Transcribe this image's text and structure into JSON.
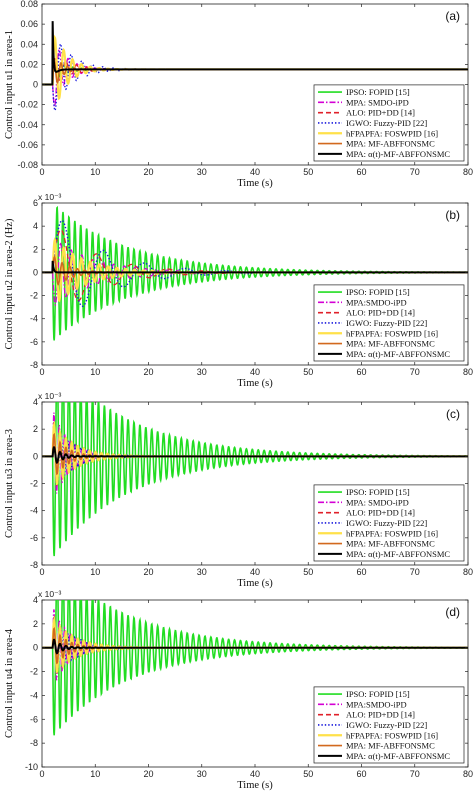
{
  "chart_data": [
    {
      "type": "line",
      "panel_label": "(a)",
      "ylabel": "Control input u1 in area-1",
      "xlabel": "Time (s)",
      "y_multiplier": "",
      "xlim": [
        0,
        80
      ],
      "ylim": [
        -0.08,
        0.08
      ],
      "xticks": [
        "0",
        "10",
        "20",
        "30",
        "40",
        "50",
        "60",
        "70",
        "80"
      ],
      "yticks": [
        "-0.08",
        "-0.06",
        "-0.04",
        "-0.02",
        "0",
        "0.02",
        "0.04",
        "0.06",
        "0.08"
      ],
      "legend_position": "bottom-right",
      "series": [
        {
          "name": "IPSO: FOPID [15]",
          "color": "#22dd22",
          "dash": "solid",
          "width": 1.6,
          "final": 0.015,
          "t0": 2.0,
          "amp": 0.01,
          "tau": 2.5,
          "freq": 0.6,
          "spike": 0.01
        },
        {
          "name": "MPA: SMDO-iPD",
          "color": "#d400d4",
          "dash": "dashdot",
          "width": 1.3,
          "final": 0.015,
          "t0": 2.0,
          "amp": -0.035,
          "tau": 2.5,
          "freq": 0.6,
          "spike": 0.0
        },
        {
          "name": "ALO: PID+DD [14]",
          "color": "#e0202a",
          "dash": "dash",
          "width": 1.3,
          "final": 0.015,
          "t0": 2.0,
          "amp": 0.02,
          "tau": 3.0,
          "freq": 0.5,
          "spike": 0.0
        },
        {
          "name": "IGWO: Fuzzy-PID [22]",
          "color": "#1a1adc",
          "dash": "dot",
          "width": 1.4,
          "final": 0.015,
          "t0": 2.0,
          "amp": -0.04,
          "tau": 3.5,
          "freq": 0.5,
          "spike": 0.0
        },
        {
          "name": "hFPAPFA: FOSWPID [16]",
          "color": "#ffe14a",
          "dash": "solid",
          "width": 2.2,
          "final": 0.015,
          "t0": 2.0,
          "amp": 0.045,
          "tau": 2.5,
          "freq": 0.6,
          "spike": 0.0
        },
        {
          "name": "MPA: MF-ABFFONSMC",
          "color": "#d2691e",
          "dash": "solid",
          "width": 1.6,
          "final": 0.015,
          "t0": 2.0,
          "amp": 0.02,
          "tau": 1.5,
          "freq": 0.8,
          "spike": 0.0
        },
        {
          "name": "MPA: α(t)-MF-ABFFONSMC",
          "color": "#000000",
          "dash": "solid",
          "width": 2.0,
          "final": 0.015,
          "t0": 2.0,
          "amp": 0.0,
          "tau": 1.0,
          "freq": 0.8,
          "spike": 0.063
        }
      ]
    },
    {
      "type": "line",
      "panel_label": "(b)",
      "ylabel": "Control input u2 in area-2 (Hz)",
      "xlabel": "Time (s)",
      "y_multiplier": "x 10⁻³",
      "xlim": [
        0,
        80
      ],
      "ylim": [
        -8,
        6
      ],
      "xticks": [
        "0",
        "10",
        "20",
        "30",
        "40",
        "50",
        "60",
        "70",
        "80"
      ],
      "yticks": [
        "-8",
        "-6",
        "-4",
        "-2",
        "0",
        "2",
        "4",
        "6"
      ],
      "legend_position": "bottom-right",
      "series": [
        {
          "name": "IPSO: FOPID [15]",
          "color": "#22dd22",
          "dash": "solid",
          "width": 1.6,
          "final": 0,
          "t0": 2.0,
          "amp": -6.0,
          "tau": 14,
          "freq": 0.9,
          "spike": 0.0
        },
        {
          "name": "MPA:SMDO-iPD",
          "color": "#d400d4",
          "dash": "dashdot",
          "width": 1.3,
          "final": 0,
          "t0": 2.0,
          "amp": -3.0,
          "tau": 8,
          "freq": 0.5,
          "spike": 0.0
        },
        {
          "name": "ALO: PID+DD [14]",
          "color": "#e0202a",
          "dash": "dash",
          "width": 1.3,
          "final": 0,
          "t0": 2.0,
          "amp": 4.5,
          "tau": 8,
          "freq": 0.15,
          "spike": 0.0
        },
        {
          "name": "IGWO: Fuzzy-PID [22]",
          "color": "#1a1adc",
          "dash": "dot",
          "width": 1.4,
          "final": 0,
          "t0": 2.0,
          "amp": 5.5,
          "tau": 9,
          "freq": 0.13,
          "spike": 0.0
        },
        {
          "name": "hFPAPFA: FOSWPID [16]",
          "color": "#ffe14a",
          "dash": "solid",
          "width": 2.2,
          "final": 0,
          "t0": 2.0,
          "amp": 3.0,
          "tau": 6,
          "freq": 0.6,
          "spike": 0.0
        },
        {
          "name": "MPA: MF-ABFFONSMC",
          "color": "#d2691e",
          "dash": "solid",
          "width": 1.6,
          "final": 0,
          "t0": 2.0,
          "amp": 1.5,
          "tau": 3,
          "freq": 0.7,
          "spike": 0.0
        },
        {
          "name": "MPA: α(t)-MF-ABFFONSMC",
          "color": "#000000",
          "dash": "solid",
          "width": 2.0,
          "final": 0,
          "t0": 2.0,
          "amp": 0.0,
          "tau": 1,
          "freq": 0.8,
          "spike": 1.0
        }
      ]
    },
    {
      "type": "line",
      "panel_label": "(c)",
      "ylabel": "Control input u3 in area-3",
      "xlabel": "Time (s)",
      "y_multiplier": "x 10⁻³",
      "xlim": [
        0,
        80
      ],
      "ylim": [
        -8,
        4
      ],
      "xticks": [
        "0",
        "10",
        "20",
        "30",
        "40",
        "50",
        "60",
        "70",
        "80"
      ],
      "yticks": [
        "-8",
        "-6",
        "-4",
        "-2",
        "0",
        "2",
        "4"
      ],
      "legend_position": "bottom-right",
      "series": [
        {
          "name": "IPSO: FOPID [15]",
          "color": "#22dd22",
          "dash": "solid",
          "width": 1.6,
          "final": 0,
          "t0": 2.0,
          "amp": -7.5,
          "tau": 14,
          "freq": 0.9,
          "spike": 0.0
        },
        {
          "name": "MPA: SMDO-iPD",
          "color": "#d400d4",
          "dash": "dashdot",
          "width": 1.3,
          "final": 0,
          "t0": 2.0,
          "amp": 3.5,
          "tau": 3,
          "freq": 1.0,
          "spike": 0.0
        },
        {
          "name": "ALO: PID+DD [14]",
          "color": "#e0202a",
          "dash": "dash",
          "width": 1.3,
          "final": 0,
          "t0": 2.0,
          "amp": 2.8,
          "tau": 3,
          "freq": 0.9,
          "spike": 0.0
        },
        {
          "name": "IGWO: Fuzzy-PID [22]",
          "color": "#1a1adc",
          "dash": "dot",
          "width": 1.4,
          "final": 0,
          "t0": 2.0,
          "amp": 2.5,
          "tau": 4,
          "freq": 0.8,
          "spike": 0.0
        },
        {
          "name": "hFPAPFA: FOSWPID [16]",
          "color": "#ffe14a",
          "dash": "solid",
          "width": 2.2,
          "final": 0,
          "t0": 2.0,
          "amp": 2.5,
          "tau": 4,
          "freq": 0.9,
          "spike": 0.0
        },
        {
          "name": "MPA: MF-ABFFONSMC",
          "color": "#d2691e",
          "dash": "solid",
          "width": 1.6,
          "final": 0,
          "t0": 2.0,
          "amp": 1.8,
          "tau": 2.5,
          "freq": 0.9,
          "spike": 0.0
        },
        {
          "name": "MPA: α(t)-MF-ABFFONSMC",
          "color": "#000000",
          "dash": "solid",
          "width": 2.0,
          "final": 0,
          "t0": 2.0,
          "amp": 0.8,
          "tau": 1.5,
          "freq": 0.9,
          "spike": 0.0
        }
      ]
    },
    {
      "type": "line",
      "panel_label": "(d)",
      "ylabel": "Control input u4 in area-4",
      "xlabel": "Time (s)",
      "y_multiplier": "x 10⁻³",
      "xlim": [
        0,
        80
      ],
      "ylim": [
        -10,
        4
      ],
      "xticks": [
        "0",
        "10",
        "20",
        "30",
        "40",
        "50",
        "60",
        "70",
        "80"
      ],
      "yticks": [
        "-10",
        "-8",
        "-6",
        "-4",
        "-2",
        "0",
        "2",
        "4"
      ],
      "legend_position": "bottom-right",
      "series": [
        {
          "name": "IPSO: FOPID [15]",
          "color": "#22dd22",
          "dash": "solid",
          "width": 1.6,
          "final": 0,
          "t0": 2.0,
          "amp": -7.5,
          "tau": 14,
          "freq": 0.9,
          "spike": 0.0
        },
        {
          "name": "MPA:SMDO-iPD",
          "color": "#d400d4",
          "dash": "dashdot",
          "width": 1.3,
          "final": 0,
          "t0": 2.0,
          "amp": 3.5,
          "tau": 3,
          "freq": 1.0,
          "spike": 0.0
        },
        {
          "name": "ALO: PID+DD [14]",
          "color": "#e0202a",
          "dash": "dash",
          "width": 1.3,
          "final": 0,
          "t0": 2.0,
          "amp": 2.8,
          "tau": 3,
          "freq": 0.9,
          "spike": 0.0
        },
        {
          "name": "IGWO: Fuzzy-PID [22]",
          "color": "#1a1adc",
          "dash": "dot",
          "width": 1.4,
          "final": 0,
          "t0": 2.0,
          "amp": 2.5,
          "tau": 4,
          "freq": 0.8,
          "spike": 0.0
        },
        {
          "name": "hFPAPFA: FOSWPID [16]",
          "color": "#ffe14a",
          "dash": "solid",
          "width": 2.2,
          "final": 0,
          "t0": 2.0,
          "amp": 2.5,
          "tau": 4,
          "freq": 0.9,
          "spike": 0.0
        },
        {
          "name": "MPA: MF-ABFFONSMC",
          "color": "#d2691e",
          "dash": "solid",
          "width": 1.6,
          "final": 0,
          "t0": 2.0,
          "amp": 1.8,
          "tau": 2.5,
          "freq": 0.9,
          "spike": 0.0
        },
        {
          "name": "MPA: α(t)-MF-ABFFONSMC",
          "color": "#000000",
          "dash": "solid",
          "width": 2.0,
          "final": 0,
          "t0": 2.0,
          "amp": 0.8,
          "tau": 1.5,
          "freq": 0.9,
          "spike": 0.0
        }
      ]
    }
  ]
}
